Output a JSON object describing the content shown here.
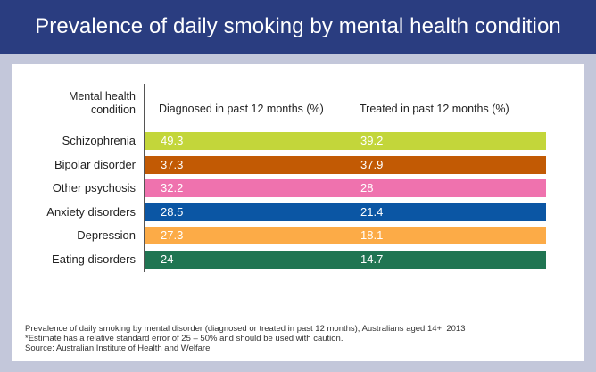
{
  "header": {
    "title": "Prevalence of daily smoking by mental health condition",
    "background_color": "#2a3d80"
  },
  "chart_data": {
    "type": "table",
    "title": "Prevalence of daily smoking by mental health condition",
    "column_headers": {
      "condition": "Mental health condition",
      "diagnosed": "Diagnosed in past 12 months (%)",
      "treated": "Treated in past 12 months (%)"
    },
    "rows": [
      {
        "condition": "Schizophrenia",
        "diagnosed": "49.3",
        "treated": "39.2",
        "color": "#c3d63a"
      },
      {
        "condition": "Bipolar disorder",
        "diagnosed": "37.3",
        "treated": "37.9",
        "color": "#c25a04"
      },
      {
        "condition": "Other psychosis",
        "diagnosed": "32.2",
        "treated": "28",
        "color": "#ef72ae"
      },
      {
        "condition": "Anxiety disorders",
        "diagnosed": "28.5",
        "treated": "21.4",
        "color": "#0b56a4"
      },
      {
        "condition": "Depression",
        "diagnosed": "27.3",
        "treated": "18.1",
        "color": "#fcab47"
      },
      {
        "condition": "Eating disorders",
        "diagnosed": "24",
        "treated": "14.7",
        "color": "#207552"
      }
    ]
  },
  "footnotes": [
    "Prevalence of daily smoking by mental disorder (diagnosed or treated in past 12 months), Australians aged 14+, 2013",
    "*Estimate has a relative standard error of 25 – 50% and should be used with caution.",
    "Source: Australian Institute of Health and Welfare"
  ]
}
